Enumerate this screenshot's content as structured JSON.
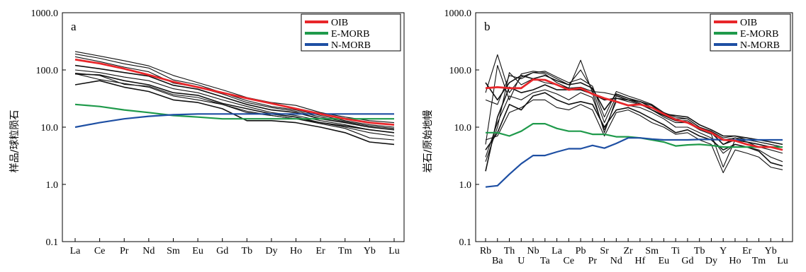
{
  "chart_data": [
    {
      "type": "line",
      "panel_label": "a",
      "ylabel": "样品/球粒陨石",
      "yscale": "log",
      "ylim": [
        0.1,
        1000
      ],
      "yticks": [
        "1000.0",
        "100.0",
        "10.0",
        "1.0",
        "0.1"
      ],
      "categories": [
        "La",
        "Ce",
        "Pr",
        "Nd",
        "Sm",
        "Eu",
        "Gd",
        "Tb",
        "Dy",
        "Ho",
        "Er",
        "Tm",
        "Yb",
        "Lu"
      ],
      "legend": {
        "position": "top-right",
        "entries": [
          {
            "label": "OIB",
            "color": "#e8262a"
          },
          {
            "label": "E-MORB",
            "color": "#1f9a4b"
          },
          {
            "label": "N-MORB",
            "color": "#1e4fa3"
          }
        ]
      },
      "reference_series": [
        {
          "name": "OIB",
          "color": "#e8262a",
          "values": [
            152,
            130,
            105,
            82,
            62,
            50,
            40,
            32,
            26,
            21,
            17,
            14,
            12,
            11
          ]
        },
        {
          "name": "E-MORB",
          "color": "#1f9a4b",
          "values": [
            25,
            23,
            20,
            18,
            16,
            15,
            14,
            14,
            14,
            14,
            14,
            14,
            14,
            14
          ]
        },
        {
          "name": "N-MORB",
          "color": "#1e4fa3",
          "values": [
            10,
            12,
            14,
            15.5,
            16.5,
            17,
            17,
            17,
            17,
            17,
            17,
            17,
            17,
            17
          ]
        }
      ],
      "sample_series": [
        {
          "values": [
            210,
            175,
            145,
            118,
            80,
            60,
            45,
            33,
            27,
            24,
            18,
            15,
            13,
            12
          ]
        },
        {
          "values": [
            190,
            160,
            128,
            108,
            67,
            55,
            40,
            29,
            23,
            20,
            16,
            13,
            11,
            10
          ]
        },
        {
          "values": [
            170,
            140,
            112,
            93,
            59,
            50,
            38,
            27,
            22,
            19,
            15,
            12.5,
            10.5,
            9.5
          ]
        },
        {
          "values": [
            120,
            105,
            90,
            78,
            54,
            46,
            34,
            25,
            20,
            18,
            14,
            12,
            10,
            9
          ]
        },
        {
          "values": [
            100,
            90,
            75,
            65,
            47,
            40,
            30,
            23,
            18,
            16,
            13,
            11,
            9,
            8
          ]
        },
        {
          "values": [
            85,
            82,
            65,
            55,
            40,
            36,
            26,
            21,
            17,
            15,
            12,
            10.5,
            9,
            8
          ]
        },
        {
          "values": [
            86,
            68,
            58,
            50,
            35,
            30,
            25,
            19,
            16,
            14,
            11.5,
            9.5,
            6.5,
            6
          ]
        },
        {
          "values": [
            55,
            65,
            50,
            42,
            30,
            27,
            21,
            13,
            13,
            12,
            10,
            8,
            5.5,
            5
          ]
        },
        {
          "values": [
            88,
            80,
            56,
            52,
            37,
            33,
            25,
            18,
            16,
            14,
            12,
            10,
            8,
            7
          ]
        }
      ]
    },
    {
      "type": "line",
      "panel_label": "b",
      "ylabel": "岩石/原始地幔",
      "yscale": "log",
      "ylim": [
        0.1,
        1000
      ],
      "yticks": [
        "1000.0",
        "100.0",
        "10.0",
        "1.0",
        "0.1"
      ],
      "categories": [
        "Rb",
        "Ba",
        "Th",
        "U",
        "Nb",
        "Ta",
        "La",
        "Ce",
        "Pb",
        "Pr",
        "Sr",
        "Nd",
        "Zr",
        "Hf",
        "Sm",
        "Eu",
        "Ti",
        "Gd",
        "Tb",
        "Dy",
        "Y",
        "Ho",
        "Er",
        "Tm",
        "Yb",
        "Lu"
      ],
      "legend": {
        "position": "top-right",
        "entries": [
          {
            "label": "OIB",
            "color": "#e8262a"
          },
          {
            "label": "E-MORB",
            "color": "#1f9a4b"
          },
          {
            "label": "N-MORB",
            "color": "#1e4fa3"
          }
        ]
      },
      "reference_series": [
        {
          "name": "OIB",
          "color": "#e8262a",
          "values": [
            48,
            50,
            48,
            48,
            68,
            67,
            55,
            45,
            48,
            38,
            32,
            28,
            24,
            25,
            22,
            17,
            13.5,
            12,
            9.5,
            8,
            6,
            5.8,
            5,
            4.5,
            4.5,
            4
          ]
        },
        {
          "name": "E-MORB",
          "color": "#1f9a4b",
          "values": [
            8,
            8,
            7,
            8.5,
            11.5,
            11.5,
            9.5,
            8.5,
            8.5,
            7.5,
            7.5,
            6.8,
            6.8,
            6.5,
            6,
            5.5,
            4.7,
            4.9,
            5,
            4.8,
            4.5,
            4.5,
            4.5,
            4.5,
            4.5,
            4.5
          ]
        },
        {
          "name": "N-MORB",
          "color": "#1e4fa3",
          "values": [
            0.9,
            0.95,
            1.5,
            2.3,
            3.2,
            3.2,
            3.7,
            4.2,
            4.2,
            4.8,
            4.3,
            5.2,
            6.5,
            6.5,
            6.2,
            6,
            6,
            6,
            6.1,
            6.1,
            6,
            6,
            6,
            6,
            6,
            6
          ]
        }
      ],
      "sample_series": [
        {
          "values": [
            40,
            185,
            40,
            75,
            90,
            85,
            60,
            48,
            148,
            40,
            8,
            32,
            28,
            25,
            20,
            15,
            12,
            12,
            9,
            7.5,
            2,
            6,
            5.5,
            4.5,
            4,
            3.5
          ]
        },
        {
          "values": [
            5,
            120,
            30,
            85,
            95,
            90,
            70,
            55,
            100,
            45,
            12,
            35,
            30,
            28,
            22,
            17,
            13,
            13,
            9.5,
            8,
            5,
            6.5,
            5.5,
            5,
            4.5,
            4
          ]
        },
        {
          "values": [
            30,
            25,
            80,
            70,
            90,
            95,
            75,
            60,
            70,
            52,
            15,
            42,
            35,
            30,
            25,
            18,
            15,
            14,
            10,
            8.5,
            6.5,
            7,
            6,
            5.5,
            5,
            4.5
          ]
        },
        {
          "values": [
            60,
            30,
            60,
            80,
            70,
            80,
            65,
            55,
            60,
            48,
            20,
            38,
            32,
            28,
            24,
            17,
            16,
            15,
            11,
            9,
            7,
            7,
            6.5,
            6,
            5.5,
            5
          ]
        },
        {
          "values": [
            2.5,
            10,
            90,
            55,
            70,
            60,
            55,
            48,
            50,
            42,
            40,
            36,
            30,
            28,
            22,
            18,
            14,
            14,
            10,
            8.5,
            6,
            6.5,
            6,
            5.5,
            5,
            4.5
          ]
        },
        {
          "values": [
            1.7,
            15,
            50,
            40,
            45,
            55,
            45,
            45,
            45,
            38,
            30,
            32,
            30,
            26,
            20,
            16,
            13,
            12,
            9.5,
            8,
            5,
            6,
            5.5,
            5,
            4.5,
            4
          ]
        },
        {
          "values": [
            3,
            12,
            35,
            30,
            40,
            45,
            38,
            30,
            40,
            33,
            9,
            28,
            24,
            22,
            18,
            14,
            10,
            10,
            8,
            6.5,
            3.5,
            5,
            4.5,
            4,
            3,
            2.5
          ]
        },
        {
          "values": [
            4,
            8,
            25,
            20,
            35,
            40,
            30,
            25,
            28,
            25,
            10,
            20,
            22,
            18,
            14,
            11,
            8,
            9,
            7,
            6,
            4,
            5,
            4.5,
            3.8,
            2.4,
            2.1
          ]
        },
        {
          "values": [
            6,
            7,
            18,
            22,
            30,
            30,
            22,
            20,
            25,
            20,
            7,
            18,
            20,
            16,
            12,
            10,
            7.5,
            8,
            6,
            5,
            1.6,
            4,
            3.5,
            3,
            2,
            1.8
          ]
        }
      ]
    }
  ]
}
